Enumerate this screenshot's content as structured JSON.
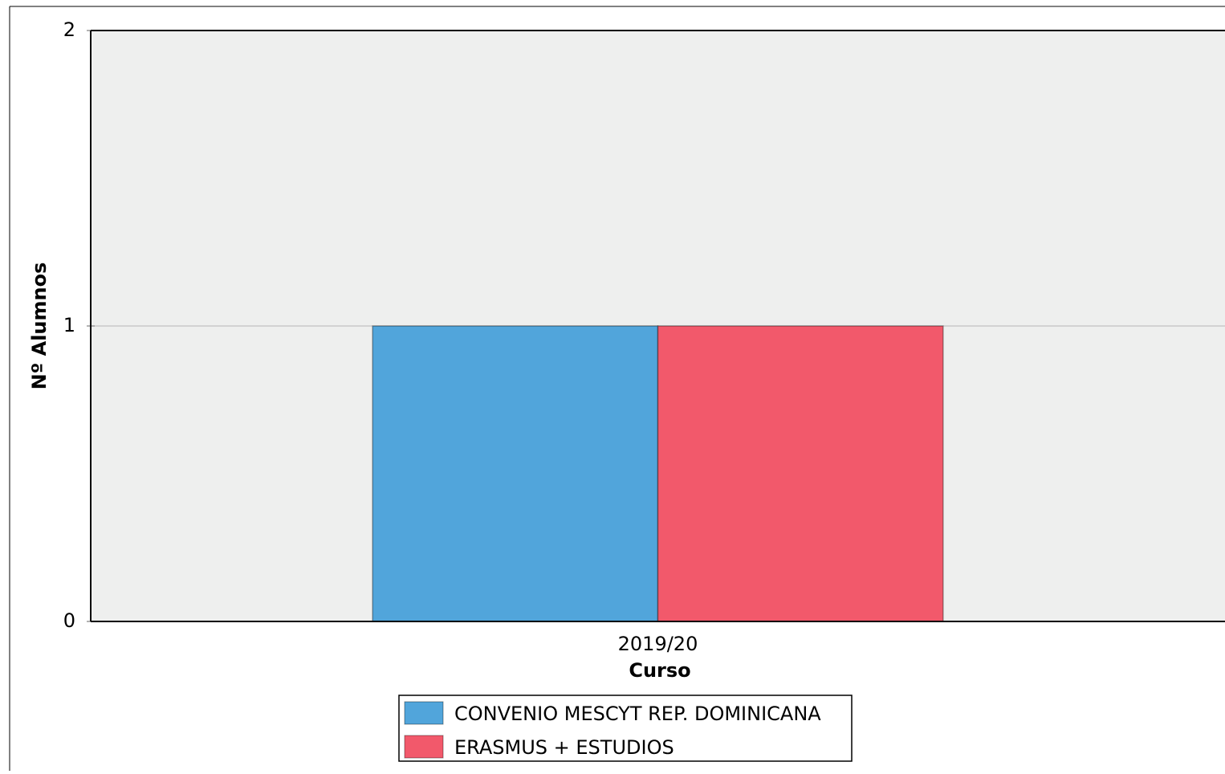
{
  "chart_data": {
    "type": "bar",
    "categories": [
      "2019/20"
    ],
    "series": [
      {
        "name": "CONVENIO MESCYT REP. DOMINICANA",
        "color": "#51a5db",
        "values": [
          1
        ]
      },
      {
        "name": "ERASMUS + ESTUDIOS",
        "color": "#f2596b",
        "values": [
          1
        ]
      }
    ],
    "xlabel": "Curso",
    "ylabel": "Nº Alumnos",
    "ylim": [
      0,
      2
    ],
    "yticks": [
      0,
      1,
      2
    ],
    "grid": true,
    "legend": "bottom"
  }
}
